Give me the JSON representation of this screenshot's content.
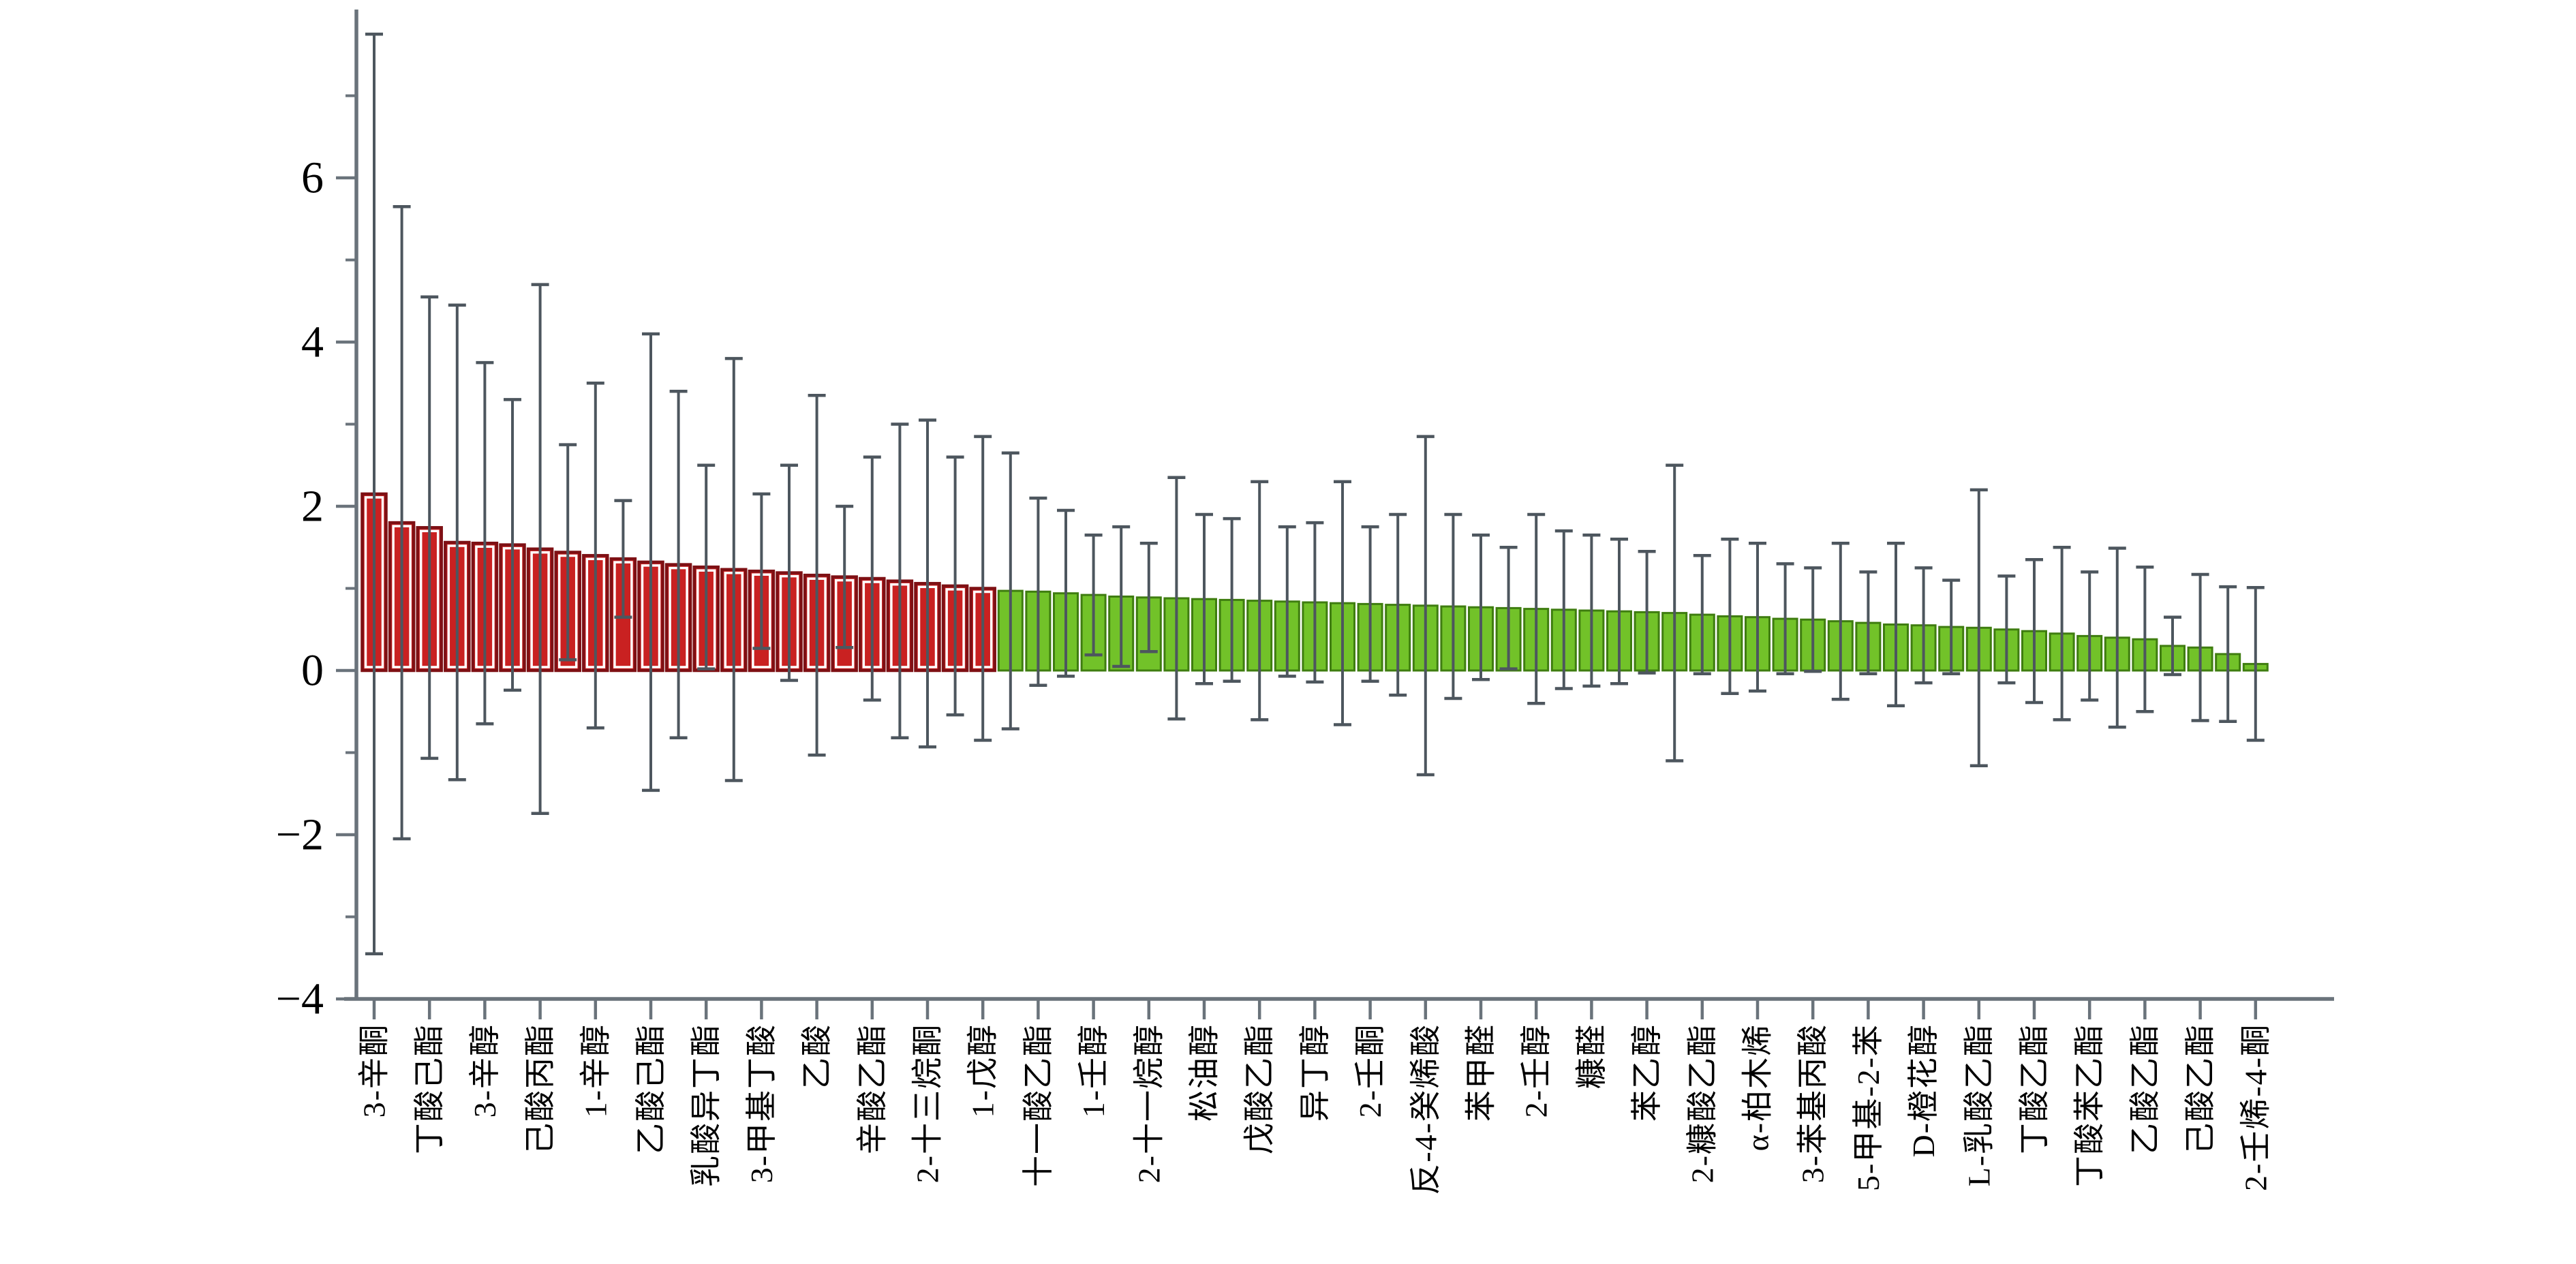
{
  "chart_data": {
    "type": "bar",
    "title": "",
    "xlabel": "",
    "ylabel": "",
    "ylim": [
      -4,
      8
    ],
    "yticks_major": [
      6,
      4,
      2,
      0,
      -2,
      -4
    ],
    "ytick_labels": [
      "6",
      "4",
      "2",
      "0",
      "−2",
      "−4"
    ],
    "yticks_minor": [
      7,
      5,
      3,
      1,
      -1,
      -3
    ],
    "grid": false,
    "legend": null,
    "axis_color": "#6a737b",
    "error_bar_color": "#4d565e",
    "tick_every_n_bars": 2,
    "bar_groups": [
      {
        "name": "red-group",
        "fill": "#c92121",
        "edge": "#7e1014",
        "inner_outline": "#ffffff",
        "first_bar": 1,
        "last_bar": 23
      },
      {
        "name": "green-group",
        "fill": "#72c229",
        "edge": "#3f7d10",
        "inner_outline": null,
        "first_bar": 24,
        "last_bar": 69
      }
    ],
    "categories": [
      "3-辛酮",
      "丁酸己酯",
      "3-辛醇",
      "己酸丙酯",
      "1-辛醇",
      "乙酸己酯",
      "乳酸异丁酯",
      "3-甲基丁酸",
      "乙酸",
      "辛酸乙酯",
      "2-十三烷酮",
      "1-戊醇",
      "十一酸乙酯",
      "1-壬醇",
      "2-十一烷醇",
      "松油醇",
      "戊酸乙酯",
      "异丁醇",
      "2-壬酮",
      "反-4-癸烯酸",
      "苯甲醛",
      "2-壬醇",
      "糠醛",
      "苯乙醇",
      "2-糠酸乙酯",
      "α-柏木烯",
      "3-苯基丙酸",
      "5-甲基-2-苯",
      "D-橙花醇",
      "L-乳酸乙酯",
      "丁酸乙酯",
      "丁酸苯乙酯",
      "乙酸乙酯",
      "己酸乙酯",
      "2-壬烯-4-酮"
    ],
    "bars": [
      {
        "value": 2.15,
        "err": 5.6,
        "group": "red"
      },
      {
        "value": 1.8,
        "err": 3.85,
        "group": "red"
      },
      {
        "value": 1.74,
        "err": 2.81,
        "group": "red"
      },
      {
        "value": 1.56,
        "err": 2.89,
        "group": "red"
      },
      {
        "value": 1.55,
        "err": 2.2,
        "group": "red"
      },
      {
        "value": 1.53,
        "err": 1.77,
        "group": "red"
      },
      {
        "value": 1.48,
        "err": 3.22,
        "group": "red"
      },
      {
        "value": 1.44,
        "err": 1.31,
        "group": "red"
      },
      {
        "value": 1.4,
        "err": 2.1,
        "group": "red"
      },
      {
        "value": 1.36,
        "err": 0.71,
        "group": "red"
      },
      {
        "value": 1.32,
        "err": 2.78,
        "group": "red"
      },
      {
        "value": 1.29,
        "err": 2.11,
        "group": "red"
      },
      {
        "value": 1.26,
        "err": 1.24,
        "group": "red"
      },
      {
        "value": 1.23,
        "err": 2.57,
        "group": "red"
      },
      {
        "value": 1.21,
        "err": 0.94,
        "group": "red"
      },
      {
        "value": 1.19,
        "err": 1.31,
        "group": "red"
      },
      {
        "value": 1.16,
        "err": 2.19,
        "group": "red"
      },
      {
        "value": 1.14,
        "err": 0.86,
        "group": "red"
      },
      {
        "value": 1.12,
        "err": 1.48,
        "group": "red"
      },
      {
        "value": 1.09,
        "err": 1.91,
        "group": "red"
      },
      {
        "value": 1.06,
        "err": 1.99,
        "group": "red"
      },
      {
        "value": 1.03,
        "err": 1.57,
        "group": "red"
      },
      {
        "value": 1.0,
        "err": 1.85,
        "group": "red"
      },
      {
        "value": 0.97,
        "err": 1.68,
        "group": "green"
      },
      {
        "value": 0.96,
        "err": 1.14,
        "group": "green"
      },
      {
        "value": 0.94,
        "err": 1.01,
        "group": "green"
      },
      {
        "value": 0.92,
        "err": 0.73,
        "group": "green"
      },
      {
        "value": 0.9,
        "err": 0.85,
        "group": "green"
      },
      {
        "value": 0.89,
        "err": 0.66,
        "group": "green"
      },
      {
        "value": 0.88,
        "err": 1.47,
        "group": "green"
      },
      {
        "value": 0.87,
        "err": 1.03,
        "group": "green"
      },
      {
        "value": 0.86,
        "err": 0.99,
        "group": "green"
      },
      {
        "value": 0.85,
        "err": 1.45,
        "group": "green"
      },
      {
        "value": 0.84,
        "err": 0.91,
        "group": "green"
      },
      {
        "value": 0.83,
        "err": 0.97,
        "group": "green"
      },
      {
        "value": 0.82,
        "err": 1.48,
        "group": "green"
      },
      {
        "value": 0.81,
        "err": 0.94,
        "group": "green"
      },
      {
        "value": 0.8,
        "err": 1.1,
        "group": "green"
      },
      {
        "value": 0.79,
        "err": 2.06,
        "group": "green"
      },
      {
        "value": 0.78,
        "err": 1.12,
        "group": "green"
      },
      {
        "value": 0.77,
        "err": 0.88,
        "group": "green"
      },
      {
        "value": 0.76,
        "err": 0.74,
        "group": "green"
      },
      {
        "value": 0.75,
        "err": 1.15,
        "group": "green"
      },
      {
        "value": 0.74,
        "err": 0.96,
        "group": "green"
      },
      {
        "value": 0.73,
        "err": 0.92,
        "group": "green"
      },
      {
        "value": 0.72,
        "err": 0.88,
        "group": "green"
      },
      {
        "value": 0.71,
        "err": 0.74,
        "group": "green"
      },
      {
        "value": 0.7,
        "err": 1.8,
        "group": "green"
      },
      {
        "value": 0.68,
        "err": 0.72,
        "group": "green"
      },
      {
        "value": 0.66,
        "err": 0.94,
        "group": "green"
      },
      {
        "value": 0.65,
        "err": 0.9,
        "group": "green"
      },
      {
        "value": 0.63,
        "err": 0.67,
        "group": "green"
      },
      {
        "value": 0.62,
        "err": 0.63,
        "group": "green"
      },
      {
        "value": 0.6,
        "err": 0.95,
        "group": "green"
      },
      {
        "value": 0.58,
        "err": 0.62,
        "group": "green"
      },
      {
        "value": 0.56,
        "err": 0.99,
        "group": "green"
      },
      {
        "value": 0.55,
        "err": 0.7,
        "group": "green"
      },
      {
        "value": 0.53,
        "err": 0.57,
        "group": "green"
      },
      {
        "value": 0.52,
        "err": 1.68,
        "group": "green"
      },
      {
        "value": 0.5,
        "err": 0.65,
        "group": "green"
      },
      {
        "value": 0.48,
        "err": 0.87,
        "group": "green"
      },
      {
        "value": 0.45,
        "err": 1.05,
        "group": "green"
      },
      {
        "value": 0.42,
        "err": 0.78,
        "group": "green"
      },
      {
        "value": 0.4,
        "err": 1.09,
        "group": "green"
      },
      {
        "value": 0.38,
        "err": 0.88,
        "group": "green"
      },
      {
        "value": 0.3,
        "err": 0.35,
        "group": "green"
      },
      {
        "value": 0.28,
        "err": 0.89,
        "group": "green"
      },
      {
        "value": 0.2,
        "err": 0.82,
        "group": "green"
      },
      {
        "value": 0.08,
        "err": 0.93,
        "group": "green"
      }
    ]
  }
}
